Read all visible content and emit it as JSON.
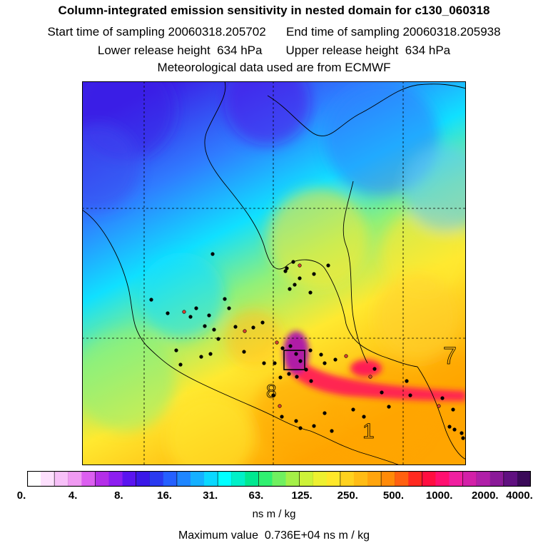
{
  "header": {
    "title": "Column-integrated emission sensitivity in nested domain for c130_060318",
    "start_label": "Start time of sampling 20060318.205702",
    "end_label": "End time of sampling 20060318.205938",
    "lower_label": "Lower release height  634 hPa",
    "upper_label": "Upper release height  634 hPa",
    "met_label": "Meteorological data used are from ECMWF"
  },
  "map": {
    "contour_labels": [
      "8",
      "1",
      "7"
    ],
    "colors": {
      "low": "#3b1ee6",
      "mid_blue": "#2f7dff",
      "cyan": "#10e0ff",
      "green": "#8ff07a",
      "yellow": "#ffe930",
      "orange": "#ffa500",
      "red": "#ff1a55",
      "magenta": "#b01fa6",
      "markers": "#000000",
      "marker_fill_alt": "#d84030"
    }
  },
  "colorbar": {
    "tick_labels": [
      "0.",
      "4.",
      "8.",
      "16.",
      "31.",
      "63.",
      "125.",
      "250.",
      "500.",
      "1000.",
      "2000.",
      "4000."
    ],
    "units": "ns m / kg",
    "colors": [
      "#ffffff",
      "#fde0fd",
      "#f7c0f8",
      "#f09af2",
      "#dc5ff0",
      "#b42fe8",
      "#8d1ef0",
      "#5a14f0",
      "#3a18e8",
      "#2a3af0",
      "#2560ff",
      "#1f86ff",
      "#15b0ff",
      "#0ad8ff",
      "#00ffff",
      "#00f0c8",
      "#00e890",
      "#30f070",
      "#70f060",
      "#a4f048",
      "#cdf238",
      "#eef030",
      "#ffe82a",
      "#ffd21f",
      "#ffbc15",
      "#ffa40d",
      "#ff8a08",
      "#ff6010",
      "#ff2a20",
      "#ff0e40",
      "#ff1070",
      "#f020a0",
      "#d320a8",
      "#b020a8",
      "#8a1a98",
      "#601080",
      "#3a0a58"
    ]
  },
  "footer": {
    "max_label": "Maximum value  0.736E+04 ns m / kg"
  }
}
